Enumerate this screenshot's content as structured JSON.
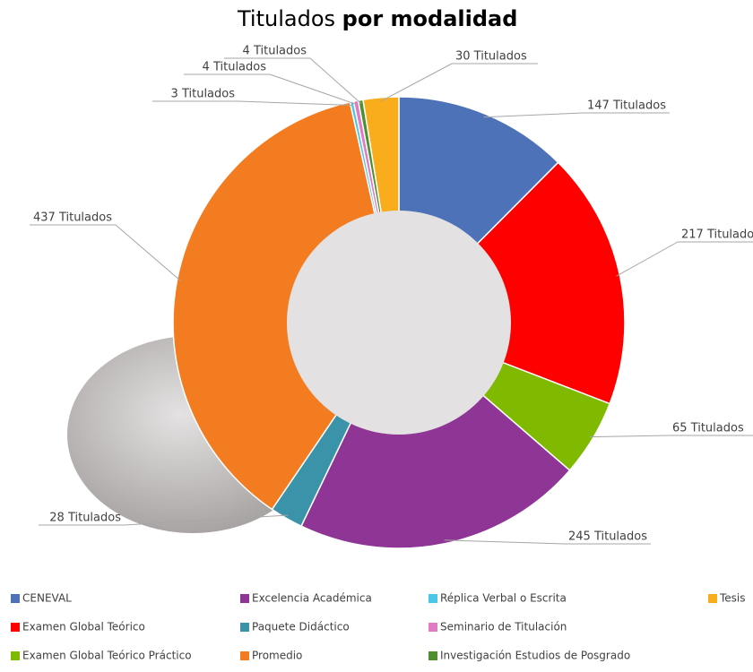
{
  "chart_data": {
    "type": "donut",
    "title": [
      "Titulados",
      "por modalidad"
    ],
    "categories": [
      "CENEVAL",
      "Examen Global Teórico",
      "Examen Global Teórico Práctico",
      "Excelencia Académica",
      "Paquete Didáctico",
      "Promedio",
      "Réplica Verbal o Escrita",
      "Seminario de Titulación",
      "Investigación Estudios de Posgrado",
      "Tesis"
    ],
    "values": [
      147,
      217,
      65,
      245,
      28,
      437,
      3,
      4,
      4,
      30
    ],
    "value_labels": [
      "147 Titulados",
      "217  Titulados",
      "65 Titulados",
      "245 Titulados",
      "28 Titulados",
      "437 Titulados",
      "3 Titulados",
      "4 Titulados",
      "4 Titulados",
      "30 Titulados"
    ],
    "colors": [
      "#4e72b8",
      "#ff0000",
      "#7fba00",
      "#8e3595",
      "#3a93a8",
      "#f47c20",
      "#4bc6e8",
      "#e07bc4",
      "#4e8f2f",
      "#f9ac1c"
    ],
    "legend": "bottom"
  }
}
